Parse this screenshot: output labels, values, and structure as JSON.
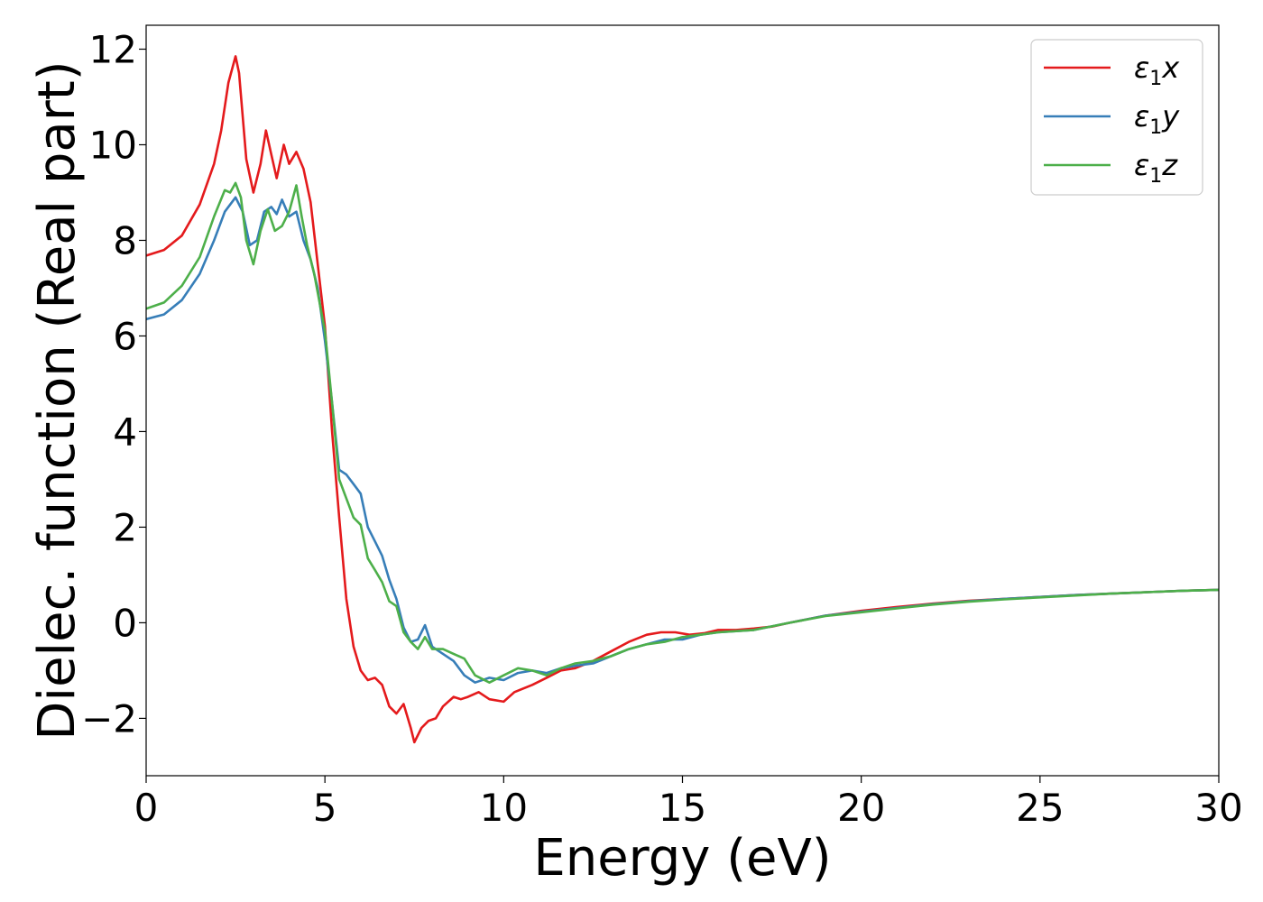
{
  "chart_data": {
    "type": "line",
    "xlabel": "Energy (eV)",
    "ylabel": "Dielec. function (Real part)",
    "xlim": [
      0,
      30
    ],
    "ylim": [
      -3.2,
      12.5
    ],
    "xticks": [
      0,
      5,
      10,
      15,
      20,
      25,
      30
    ],
    "xtick_labels": [
      "0",
      "5",
      "10",
      "15",
      "20",
      "25",
      "30"
    ],
    "yticks": [
      -2,
      0,
      2,
      4,
      6,
      8,
      10,
      12
    ],
    "ytick_labels": [
      "−2",
      "0",
      "2",
      "4",
      "6",
      "8",
      "10",
      "12"
    ],
    "grid": false,
    "legend_position": "top-right",
    "series": [
      {
        "name": "ε₁x",
        "legend_base": "ε",
        "legend_sub": "1",
        "legend_suffix": "x",
        "color": "#e41a1c",
        "points": [
          [
            0,
            7.68
          ],
          [
            0.5,
            7.8
          ],
          [
            1.0,
            8.1
          ],
          [
            1.5,
            8.75
          ],
          [
            1.9,
            9.6
          ],
          [
            2.1,
            10.3
          ],
          [
            2.3,
            11.3
          ],
          [
            2.5,
            11.85
          ],
          [
            2.6,
            11.5
          ],
          [
            2.8,
            9.7
          ],
          [
            3.0,
            9.0
          ],
          [
            3.2,
            9.6
          ],
          [
            3.35,
            10.3
          ],
          [
            3.5,
            9.8
          ],
          [
            3.65,
            9.3
          ],
          [
            3.85,
            10.0
          ],
          [
            4.0,
            9.6
          ],
          [
            4.2,
            9.85
          ],
          [
            4.4,
            9.5
          ],
          [
            4.6,
            8.8
          ],
          [
            4.8,
            7.5
          ],
          [
            5.0,
            6.2
          ],
          [
            5.2,
            4.0
          ],
          [
            5.4,
            2.2
          ],
          [
            5.6,
            0.5
          ],
          [
            5.8,
            -0.5
          ],
          [
            6.0,
            -1.0
          ],
          [
            6.2,
            -1.2
          ],
          [
            6.4,
            -1.15
          ],
          [
            6.6,
            -1.3
          ],
          [
            6.8,
            -1.75
          ],
          [
            7.0,
            -1.9
          ],
          [
            7.2,
            -1.7
          ],
          [
            7.4,
            -2.2
          ],
          [
            7.5,
            -2.5
          ],
          [
            7.7,
            -2.2
          ],
          [
            7.9,
            -2.05
          ],
          [
            8.1,
            -2.0
          ],
          [
            8.3,
            -1.75
          ],
          [
            8.6,
            -1.55
          ],
          [
            8.8,
            -1.6
          ],
          [
            9.0,
            -1.55
          ],
          [
            9.3,
            -1.45
          ],
          [
            9.6,
            -1.6
          ],
          [
            10.0,
            -1.65
          ],
          [
            10.3,
            -1.45
          ],
          [
            10.8,
            -1.3
          ],
          [
            11.2,
            -1.15
          ],
          [
            11.6,
            -1.0
          ],
          [
            12.0,
            -0.95
          ],
          [
            12.5,
            -0.8
          ],
          [
            13.0,
            -0.6
          ],
          [
            13.5,
            -0.4
          ],
          [
            14.0,
            -0.25
          ],
          [
            14.4,
            -0.2
          ],
          [
            14.8,
            -0.2
          ],
          [
            15.2,
            -0.25
          ],
          [
            15.6,
            -0.22
          ],
          [
            16.0,
            -0.15
          ],
          [
            16.5,
            -0.15
          ],
          [
            17.0,
            -0.12
          ],
          [
            17.5,
            -0.08
          ],
          [
            18.0,
            0.0
          ],
          [
            19.0,
            0.15
          ],
          [
            20.0,
            0.25
          ],
          [
            21.0,
            0.33
          ],
          [
            22.0,
            0.4
          ],
          [
            23.0,
            0.46
          ],
          [
            24.0,
            0.5
          ],
          [
            25.0,
            0.54
          ],
          [
            26.0,
            0.58
          ],
          [
            27.0,
            0.61
          ],
          [
            28.0,
            0.64
          ],
          [
            29.0,
            0.67
          ],
          [
            30.0,
            0.69
          ]
        ]
      },
      {
        "name": "ε₁y",
        "legend_base": "ε",
        "legend_sub": "1",
        "legend_suffix": "y",
        "color": "#377eb8",
        "points": [
          [
            0,
            6.35
          ],
          [
            0.5,
            6.45
          ],
          [
            1.0,
            6.75
          ],
          [
            1.5,
            7.3
          ],
          [
            1.9,
            8.0
          ],
          [
            2.2,
            8.6
          ],
          [
            2.5,
            8.9
          ],
          [
            2.7,
            8.6
          ],
          [
            2.9,
            7.9
          ],
          [
            3.1,
            8.0
          ],
          [
            3.3,
            8.6
          ],
          [
            3.5,
            8.7
          ],
          [
            3.65,
            8.55
          ],
          [
            3.8,
            8.85
          ],
          [
            4.0,
            8.5
          ],
          [
            4.2,
            8.6
          ],
          [
            4.4,
            8.0
          ],
          [
            4.6,
            7.6
          ],
          [
            4.8,
            7.0
          ],
          [
            5.0,
            5.9
          ],
          [
            5.2,
            4.6
          ],
          [
            5.4,
            3.2
          ],
          [
            5.6,
            3.1
          ],
          [
            5.8,
            2.9
          ],
          [
            6.0,
            2.7
          ],
          [
            6.2,
            2.0
          ],
          [
            6.4,
            1.7
          ],
          [
            6.6,
            1.4
          ],
          [
            6.8,
            0.9
          ],
          [
            7.0,
            0.5
          ],
          [
            7.2,
            -0.1
          ],
          [
            7.4,
            -0.4
          ],
          [
            7.6,
            -0.35
          ],
          [
            7.8,
            -0.05
          ],
          [
            8.0,
            -0.5
          ],
          [
            8.3,
            -0.65
          ],
          [
            8.6,
            -0.8
          ],
          [
            8.9,
            -1.1
          ],
          [
            9.2,
            -1.25
          ],
          [
            9.6,
            -1.15
          ],
          [
            10.0,
            -1.2
          ],
          [
            10.4,
            -1.05
          ],
          [
            10.8,
            -1.0
          ],
          [
            11.2,
            -1.05
          ],
          [
            11.6,
            -0.95
          ],
          [
            12.0,
            -0.9
          ],
          [
            12.5,
            -0.85
          ],
          [
            13.0,
            -0.7
          ],
          [
            13.5,
            -0.55
          ],
          [
            14.0,
            -0.45
          ],
          [
            14.5,
            -0.35
          ],
          [
            15.0,
            -0.35
          ],
          [
            15.5,
            -0.25
          ],
          [
            16.0,
            -0.2
          ],
          [
            17.0,
            -0.15
          ],
          [
            18.0,
            0.0
          ],
          [
            19.0,
            0.15
          ],
          [
            20.0,
            0.23
          ],
          [
            21.0,
            0.31
          ],
          [
            22.0,
            0.39
          ],
          [
            23.0,
            0.45
          ],
          [
            24.0,
            0.5
          ],
          [
            25.0,
            0.54
          ],
          [
            26.0,
            0.58
          ],
          [
            27.0,
            0.61
          ],
          [
            28.0,
            0.64
          ],
          [
            29.0,
            0.67
          ],
          [
            30.0,
            0.69
          ]
        ]
      },
      {
        "name": "ε₁z",
        "legend_base": "ε",
        "legend_sub": "1",
        "legend_suffix": "z",
        "color": "#4daf4a",
        "points": [
          [
            0,
            6.57
          ],
          [
            0.5,
            6.7
          ],
          [
            1.0,
            7.05
          ],
          [
            1.5,
            7.65
          ],
          [
            1.9,
            8.5
          ],
          [
            2.2,
            9.05
          ],
          [
            2.35,
            9.0
          ],
          [
            2.5,
            9.2
          ],
          [
            2.65,
            8.9
          ],
          [
            2.8,
            8.0
          ],
          [
            3.0,
            7.5
          ],
          [
            3.2,
            8.2
          ],
          [
            3.4,
            8.65
          ],
          [
            3.6,
            8.2
          ],
          [
            3.8,
            8.3
          ],
          [
            4.0,
            8.6
          ],
          [
            4.2,
            9.15
          ],
          [
            4.35,
            8.5
          ],
          [
            4.5,
            7.9
          ],
          [
            4.7,
            7.3
          ],
          [
            5.0,
            6.1
          ],
          [
            5.2,
            4.6
          ],
          [
            5.4,
            3.0
          ],
          [
            5.6,
            2.6
          ],
          [
            5.8,
            2.2
          ],
          [
            6.0,
            2.05
          ],
          [
            6.2,
            1.35
          ],
          [
            6.4,
            1.1
          ],
          [
            6.6,
            0.85
          ],
          [
            6.8,
            0.45
          ],
          [
            7.0,
            0.35
          ],
          [
            7.2,
            -0.2
          ],
          [
            7.4,
            -0.4
          ],
          [
            7.6,
            -0.55
          ],
          [
            7.8,
            -0.3
          ],
          [
            8.0,
            -0.55
          ],
          [
            8.3,
            -0.55
          ],
          [
            8.6,
            -0.65
          ],
          [
            8.9,
            -0.75
          ],
          [
            9.2,
            -1.1
          ],
          [
            9.6,
            -1.25
          ],
          [
            10.0,
            -1.1
          ],
          [
            10.4,
            -0.95
          ],
          [
            10.8,
            -1.0
          ],
          [
            11.2,
            -1.1
          ],
          [
            11.6,
            -0.95
          ],
          [
            12.0,
            -0.85
          ],
          [
            12.5,
            -0.8
          ],
          [
            13.0,
            -0.7
          ],
          [
            13.5,
            -0.55
          ],
          [
            14.0,
            -0.45
          ],
          [
            14.5,
            -0.4
          ],
          [
            15.0,
            -0.3
          ],
          [
            15.5,
            -0.25
          ],
          [
            16.0,
            -0.2
          ],
          [
            17.0,
            -0.15
          ],
          [
            18.0,
            0.0
          ],
          [
            19.0,
            0.14
          ],
          [
            20.0,
            0.22
          ],
          [
            21.0,
            0.3
          ],
          [
            22.0,
            0.38
          ],
          [
            23.0,
            0.44
          ],
          [
            24.0,
            0.49
          ],
          [
            25.0,
            0.53
          ],
          [
            26.0,
            0.57
          ],
          [
            27.0,
            0.61
          ],
          [
            28.0,
            0.64
          ],
          [
            29.0,
            0.67
          ],
          [
            30.0,
            0.69
          ]
        ]
      }
    ]
  }
}
